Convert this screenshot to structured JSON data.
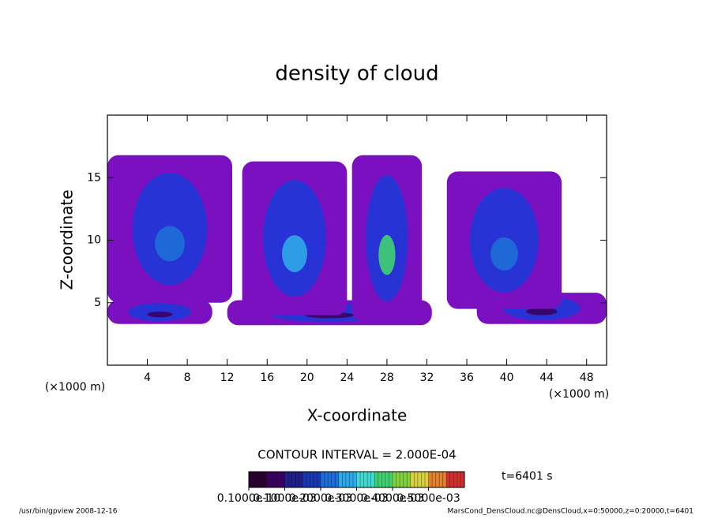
{
  "chart_data": {
    "type": "contour",
    "title": "density of cloud",
    "x_label": "X-coordinate",
    "y_label": "Z-coordinate",
    "x_unit_label": "(×1000 m)",
    "xlim": [
      0,
      50
    ],
    "ylim": [
      0,
      20
    ],
    "xticks": [
      4,
      8,
      12,
      16,
      20,
      24,
      28,
      32,
      36,
      40,
      44,
      48
    ],
    "yticks": [
      5,
      10,
      15
    ],
    "regions": [
      {
        "x": [
          0,
          10.5
        ],
        "z": [
          3.3,
          5.2
        ],
        "peak": 5e-05
      },
      {
        "x": [
          12,
          32.5
        ],
        "z": [
          3.2,
          5.2
        ],
        "peak": 5e-05
      },
      {
        "x": [
          37,
          50
        ],
        "z": [
          3.3,
          5.8
        ],
        "peak": 5e-05
      },
      {
        "x": [
          0,
          12.5
        ],
        "z": [
          5,
          16.8
        ],
        "peak": 0.00022
      },
      {
        "x": [
          13.5,
          24
        ],
        "z": [
          4,
          16.3
        ],
        "peak": 0.00028
      },
      {
        "x": [
          24.5,
          31.5
        ],
        "z": [
          3.5,
          16.8
        ],
        "peak": 0.00036
      },
      {
        "x": [
          34,
          45.5
        ],
        "z": [
          4.5,
          15.5
        ],
        "peak": 0.00024
      }
    ],
    "contour_interval_label": "CONTOUR INTERVAL = 2.000E-04",
    "time_label": "t=6401 s",
    "colorbar": {
      "lim": [
        0,
        0.0006
      ],
      "colors": [
        "#2a0030",
        "#3a0060",
        "#20208a",
        "#1838b0",
        "#1e6ed8",
        "#30a8e8",
        "#40d8d0",
        "#40d070",
        "#80d040",
        "#d8d040",
        "#e08030",
        "#d03030"
      ],
      "ticks": [
        {
          "value": 1e-11,
          "label": "0.1000e-10"
        },
        {
          "value": 0.0001,
          "label": "0.1000e-03"
        },
        {
          "value": 0.0002,
          "label": "0.2000e-03"
        },
        {
          "value": 0.0003,
          "label": "0.3000e-03"
        },
        {
          "value": 0.0004,
          "label": "0.4000e-03"
        },
        {
          "value": 0.0005,
          "label": "0.5000e-03"
        }
      ]
    },
    "footer_left": "/usr/bin/gpview   2008-12-16",
    "footer_right": "MarsCond_DensCloud.nc@DensCloud,x=0:50000,z=0:20000,t=6401"
  }
}
